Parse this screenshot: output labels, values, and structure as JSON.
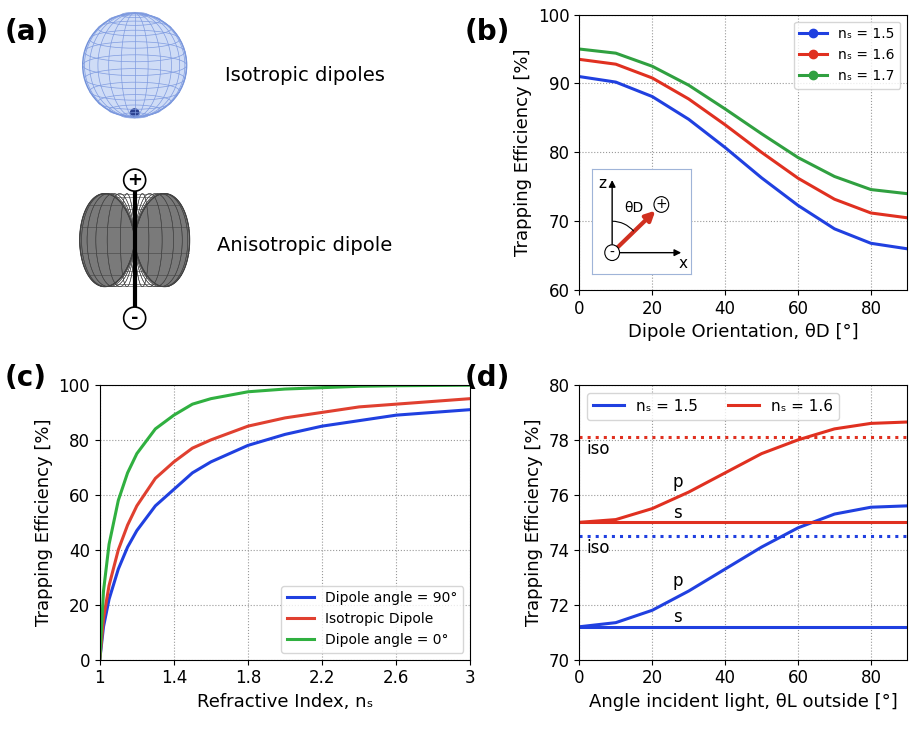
{
  "diagram": {
    "panel_label": "(a)",
    "sphere_label": "Isotropic dipoles",
    "dipole_label": "Anisotropic dipole",
    "plus": "+",
    "minus": "-"
  },
  "chart_data": [
    {
      "panel_label": "(b)",
      "type": "line",
      "x_label": "Dipole Orientation, θD [°]",
      "y_label": "Trapping Efficiency [%]",
      "x": [
        0,
        10,
        20,
        30,
        40,
        50,
        60,
        70,
        80,
        90
      ],
      "xlim": [
        0,
        90
      ],
      "xticks": [
        0,
        20,
        40,
        60,
        80
      ],
      "ylim": [
        60,
        100
      ],
      "yticks": [
        60,
        70,
        80,
        90,
        100
      ],
      "grid": true,
      "legend": "upper right",
      "series": [
        {
          "name": "nₛ = 1.5",
          "color": "#2040e0",
          "marker": "o",
          "line_style": "solid",
          "values": [
            91,
            90.2,
            88.1,
            84.8,
            80.7,
            76.3,
            72.3,
            68.9,
            66.8,
            66
          ]
        },
        {
          "name": "nₛ = 1.6",
          "color": "#e03020",
          "marker": "o",
          "line_style": "solid",
          "values": [
            93.5,
            92.8,
            90.8,
            87.75,
            84.0,
            80.0,
            76.25,
            73.2,
            71.2,
            70.5
          ]
        },
        {
          "name": "nₛ = 1.7",
          "color": "#30a040",
          "marker": "o",
          "line_style": "solid",
          "values": [
            95,
            94.4,
            92.5,
            89.75,
            86.3,
            82.7,
            79.25,
            76.5,
            74.6,
            74
          ]
        }
      ],
      "inset": {
        "z_label": "z",
        "x_label": "x",
        "angle_label": "θD",
        "plus": "+",
        "minus": "-"
      }
    },
    {
      "panel_label": "(c)",
      "type": "line",
      "x_label": "Refractive Index, nₛ",
      "y_label": "Trapping Efficiency [%]",
      "x": [
        1,
        1.02,
        1.05,
        1.1,
        1.15,
        1.2,
        1.3,
        1.4,
        1.5,
        1.6,
        1.8,
        2.0,
        2.2,
        2.4,
        2.6,
        2.8,
        3.0
      ],
      "xlim": [
        1,
        3
      ],
      "xticks": [
        1,
        1.4,
        1.8,
        2.2,
        2.6,
        3
      ],
      "ylim": [
        0,
        100
      ],
      "yticks": [
        0,
        20,
        40,
        60,
        80,
        100
      ],
      "grid": true,
      "legend": "lower right",
      "series": [
        {
          "name": "Dipole angle = 90°",
          "color": "#2040e0",
          "line_style": "solid",
          "values": [
            0,
            12,
            22,
            33,
            41,
            47,
            56,
            62,
            68,
            72,
            78,
            82,
            85,
            87,
            89,
            90,
            91
          ]
        },
        {
          "name": "Isotropic Dipole",
          "color": "#e04030",
          "line_style": "solid",
          "values": [
            0,
            15,
            27,
            40,
            49,
            56,
            66,
            72,
            77,
            80,
            85,
            88,
            90,
            92,
            93,
            94,
            95
          ]
        },
        {
          "name": "Dipole angle = 0°",
          "color": "#30b040",
          "line_style": "solid",
          "values": [
            0,
            25,
            42,
            58,
            68,
            75,
            84,
            89,
            93,
            95,
            97.5,
            98.5,
            99,
            99.5,
            99.7,
            99.8,
            99.9
          ]
        }
      ]
    },
    {
      "panel_label": "(d)",
      "type": "line",
      "x_label": "Angle incident light, θL outside [°]",
      "y_label": "Trapping Efficiency [%]",
      "x": [
        0,
        10,
        20,
        30,
        40,
        50,
        60,
        70,
        80,
        90
      ],
      "xlim": [
        0,
        90
      ],
      "xticks": [
        0,
        20,
        40,
        60,
        80
      ],
      "ylim": [
        70,
        80
      ],
      "yticks": [
        70,
        72,
        74,
        76,
        78,
        80
      ],
      "grid": true,
      "legend": "upper left",
      "series": [
        {
          "name": "nₛ = 1.5",
          "curve_label": "iso",
          "color": "#2040e0",
          "line_style": "dotted",
          "values": [
            74.5,
            74.5,
            74.5,
            74.5,
            74.5,
            74.5,
            74.5,
            74.5,
            74.5,
            74.5
          ]
        },
        {
          "name": "nₛ = 1.5",
          "curve_label": "p",
          "color": "#2040e0",
          "line_style": "solid",
          "values": [
            71.2,
            71.35,
            71.8,
            72.5,
            73.3,
            74.1,
            74.8,
            75.3,
            75.55,
            75.6
          ]
        },
        {
          "name": "nₛ = 1.5",
          "curve_label": "s",
          "color": "#2040e0",
          "line_style": "solid",
          "values": [
            71.2,
            71.2,
            71.2,
            71.2,
            71.2,
            71.2,
            71.2,
            71.2,
            71.2,
            71.2
          ]
        },
        {
          "name": "nₛ = 1.6",
          "curve_label": "iso",
          "color": "#e03020",
          "line_style": "dotted",
          "values": [
            78.1,
            78.1,
            78.1,
            78.1,
            78.1,
            78.1,
            78.1,
            78.1,
            78.1,
            78.1
          ]
        },
        {
          "name": "nₛ = 1.6",
          "curve_label": "p",
          "color": "#e03020",
          "line_style": "solid",
          "values": [
            75,
            75.1,
            75.5,
            76.1,
            76.8,
            77.5,
            78.0,
            78.4,
            78.6,
            78.65
          ]
        },
        {
          "name": "nₛ = 1.6",
          "curve_label": "s",
          "color": "#e03020",
          "line_style": "solid",
          "values": [
            75,
            75,
            75,
            75,
            75,
            75,
            75,
            75,
            75,
            75
          ]
        }
      ]
    }
  ]
}
